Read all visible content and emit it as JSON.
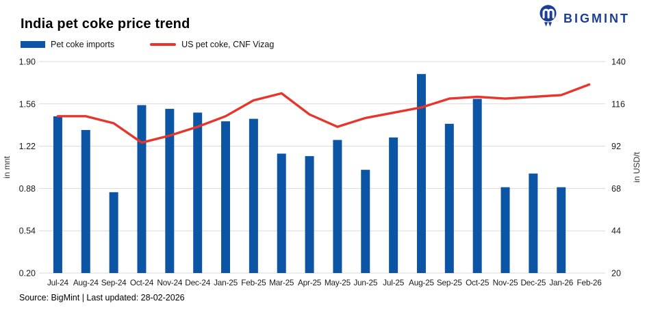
{
  "logo": {
    "text": "BIGMINT",
    "color": "#1c3e94"
  },
  "header": {
    "title": "India pet coke price trend"
  },
  "legend": [
    {
      "label": "Pet coke imports",
      "type": "bar",
      "color": "#0c55a5"
    },
    {
      "label": "US pet coke, CNF Vizag",
      "type": "line",
      "color": "#e8352c"
    }
  ],
  "footer": {
    "source_line": "Source: BigMint | Last updated: 28-02-2026"
  },
  "colors": {
    "bar": "#0c55a5",
    "line": "#e8352c",
    "grid": "#dadada",
    "axis_text": "#1a1a1a",
    "logo": "#1c3e94"
  },
  "chart_data": {
    "type": "bar",
    "title": "India pet coke price trend",
    "categories": [
      "Jul-24",
      "Aug-24",
      "Sep-24",
      "Oct-24",
      "Nov-24",
      "Dec-24",
      "Jan-25",
      "Feb-25",
      "Mar-25",
      "Apr-25",
      "May-25",
      "Jun-25",
      "Jul-25",
      "Aug-25",
      "Sep-25",
      "Oct-25",
      "Nov-25",
      "Dec-25",
      "Jan-26",
      "Feb-26"
    ],
    "series": [
      {
        "name": "Pet coke imports",
        "type": "bar",
        "axis": "left",
        "unit": "mnt",
        "color": "#0c55a5",
        "values": [
          1.46,
          1.35,
          0.85,
          1.55,
          1.52,
          1.49,
          1.42,
          1.44,
          1.16,
          1.14,
          1.27,
          1.03,
          1.29,
          1.8,
          1.4,
          1.6,
          0.89,
          1.0,
          0.89,
          null
        ]
      },
      {
        "name": "US pet coke, CNF Vizag",
        "type": "line",
        "axis": "right",
        "unit": "USD/t",
        "color": "#e8352c",
        "values": [
          109,
          109,
          105,
          94,
          98,
          103,
          109,
          118,
          122,
          110,
          103,
          108,
          111,
          114,
          119,
          120,
          119,
          120,
          121,
          127
        ]
      }
    ],
    "left_axis": {
      "label": "in mnt",
      "min": 0.2,
      "max": 1.9,
      "ticks": [
        "1.90",
        "1.56",
        "1.22",
        "0.88",
        "0.54",
        "0.20"
      ]
    },
    "right_axis": {
      "label": "in USD/t",
      "min": 20,
      "max": 140,
      "ticks": [
        "140",
        "116",
        "92",
        "68",
        "44",
        "20"
      ]
    },
    "grid": true,
    "legend_position": "top-left"
  }
}
